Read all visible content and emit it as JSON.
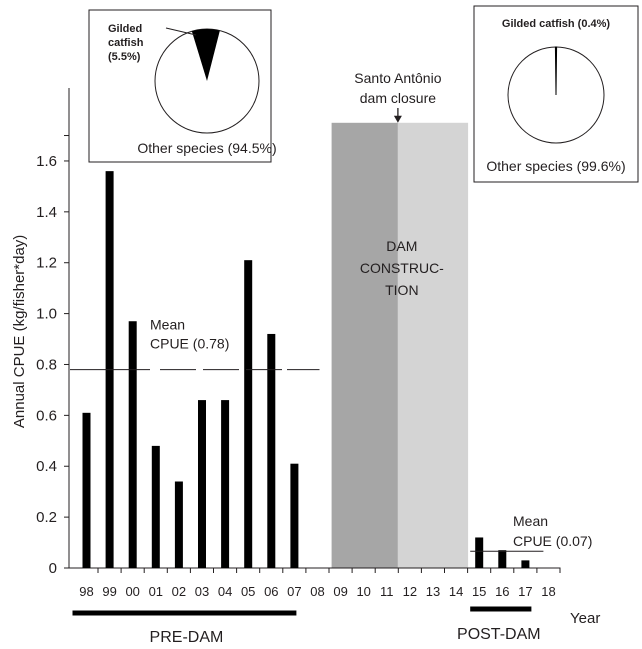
{
  "chart_data": {
    "type": "bar",
    "ylabel": "Annual CPUE (kg/fisher*day)",
    "xlabel": "Year",
    "ylim": [
      0,
      1.75
    ],
    "yticks": [
      "0",
      "0.2",
      "0.4",
      "0.6",
      "0.8",
      "1.0",
      "1.2",
      "1.4",
      "1.6"
    ],
    "categories": [
      "98",
      "99",
      "00",
      "01",
      "02",
      "03",
      "04",
      "05",
      "06",
      "07",
      "08",
      "09",
      "10",
      "11",
      "12",
      "13",
      "14",
      "15",
      "16",
      "17",
      "18"
    ],
    "values": [
      0.61,
      1.56,
      0.97,
      0.48,
      0.34,
      0.66,
      0.66,
      1.21,
      0.92,
      0.41,
      null,
      null,
      null,
      null,
      null,
      null,
      null,
      0.12,
      0.07,
      0.03,
      null
    ],
    "bar_color": "#000000",
    "mean_lines": [
      {
        "label_line1": "Mean",
        "label_line2": "CPUE (0.78)",
        "value": 0.78,
        "from": "98",
        "to": "07"
      },
      {
        "label_line1": "Mean",
        "label_line2": "CPUE (0.07)",
        "value": 0.07,
        "from": "15",
        "to": "17"
      }
    ],
    "construction": {
      "label_lines": [
        "DAM",
        "CONSTRUC-",
        "TION"
      ],
      "from": "09",
      "to": "14",
      "split_at": "12",
      "colors": [
        "#a6a6a6",
        "#d4d4d4"
      ]
    },
    "closure_annotation": {
      "line1": "Santo Antônio",
      "line2": "dam closure",
      "at": "12"
    },
    "periods": [
      {
        "label": "PRE-DAM",
        "from": "98",
        "to": "07"
      },
      {
        "label": "POST-DAM",
        "from": "15",
        "to": "17"
      }
    ],
    "pies": [
      {
        "title_line1": "Gilded",
        "title_line2": "catfish",
        "title_line3": "(5.5%)",
        "other_label": "Other species (94.5%)",
        "slices": [
          5.5,
          94.5
        ]
      },
      {
        "title_line1": "Gilded catfish (0.4%)",
        "other_label": "Other species (99.6%)",
        "slices": [
          0.4,
          99.6
        ]
      }
    ]
  }
}
